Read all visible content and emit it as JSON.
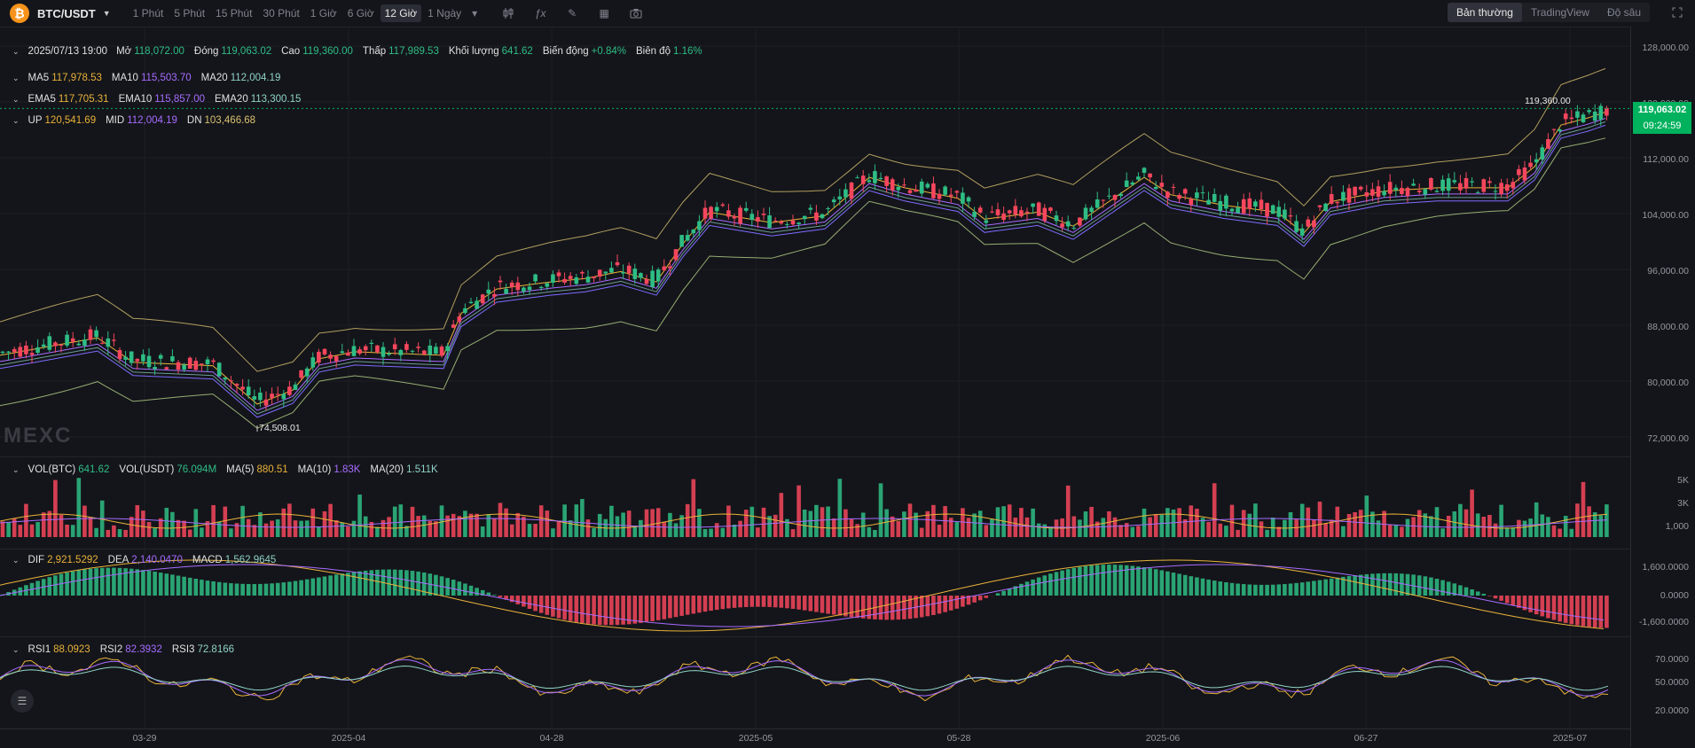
{
  "toolbar": {
    "logo_glyph": "₿",
    "symbol": "BTC/USDT",
    "intervals": [
      "1 Phút",
      "5 Phút",
      "15 Phút",
      "30 Phút",
      "1 Giờ",
      "6 Giờ",
      "12 Giờ",
      "1 Ngày"
    ],
    "active_interval": "12 Giờ",
    "view_modes": [
      "Bản thường",
      "TradingView",
      "Độ sâu"
    ],
    "active_view_mode": "Bản thường",
    "icons": [
      "candle-type-icon",
      "indicator-icon",
      "draw-icon",
      "layout-icon",
      "camera-icon",
      "fullscreen-icon"
    ]
  },
  "ohlc": {
    "date": "2025/07/13 19:00",
    "open_label": "Mở",
    "open": "118,072.00",
    "close_label": "Đóng",
    "close": "119,063.02",
    "high_label": "Cao",
    "high": "119,360.00",
    "low_label": "Thấp",
    "low": "117,989.53",
    "volume_label": "Khối lượng",
    "volume": "641.62",
    "change_label": "Biến động",
    "change": "+0.84%",
    "amplitude_label": "Biên độ",
    "amplitude": "1.16%"
  },
  "ma": {
    "ma5_label": "MA5",
    "ma5": "117,978.53",
    "ma10_label": "MA10",
    "ma10": "115,503.70",
    "ma20_label": "MA20",
    "ma20": "112,004.19"
  },
  "ema": {
    "ema5_label": "EMA5",
    "ema5": "117,705.31",
    "ema10_label": "EMA10",
    "ema10": "115,857.00",
    "ema20_label": "EMA20",
    "ema20": "113,300.15"
  },
  "boll": {
    "up_label": "UP",
    "up": "120,541.69",
    "mid_label": "MID",
    "mid": "112,004.19",
    "dn_label": "DN",
    "dn": "103,466.68"
  },
  "vol": {
    "btc_label": "VOL(BTC)",
    "btc": "641.62",
    "usdt_label": "VOL(USDT)",
    "usdt": "76.094M",
    "ma5_label": "MA(5)",
    "ma5": "880.51",
    "ma10_label": "MA(10)",
    "ma10": "1.83K",
    "ma20_label": "MA(20)",
    "ma20": "1.511K"
  },
  "macd": {
    "dif_label": "DIF",
    "dif": "2,921.5292",
    "dea_label": "DEA",
    "dea": "2,140.0470",
    "macd_label": "MACD",
    "macd": "1,562.9645"
  },
  "rsi": {
    "rsi1_label": "RSI1",
    "rsi1": "88.0923",
    "rsi2_label": "RSI2",
    "rsi2": "82.3932",
    "rsi3_label": "RSI3",
    "rsi3": "72.8166"
  },
  "price_axis": [
    "128,000.00",
    "120,000.00",
    "112,000.00",
    "104,000.00",
    "96,000.00",
    "88,000.00",
    "80,000.00",
    "72,000.00"
  ],
  "vol_axis": [
    "5K",
    "3K",
    "1,000"
  ],
  "macd_axis": [
    "1,600.0000",
    "0.0000",
    "-1,600.0000"
  ],
  "rsi_axis": [
    "70.0000",
    "50.0000",
    "20.0000"
  ],
  "current_price": "119,063.02",
  "countdown": "09:24:59",
  "high_marker": "119,360.00",
  "low_marker": "74,508.01",
  "time_axis": [
    "03-29",
    "2025-04",
    "04-28",
    "2025-05",
    "05-28",
    "2025-06",
    "06-27",
    "2025-07"
  ],
  "watermark": "MEXC",
  "colors": {
    "up": "#2ebd85",
    "down": "#f6465d",
    "ma5": "#e8b23a",
    "ma10": "#a66cff",
    "ma20": "#8fd3c8",
    "boll": "#d8c070",
    "price_box": "#00b15d"
  }
}
